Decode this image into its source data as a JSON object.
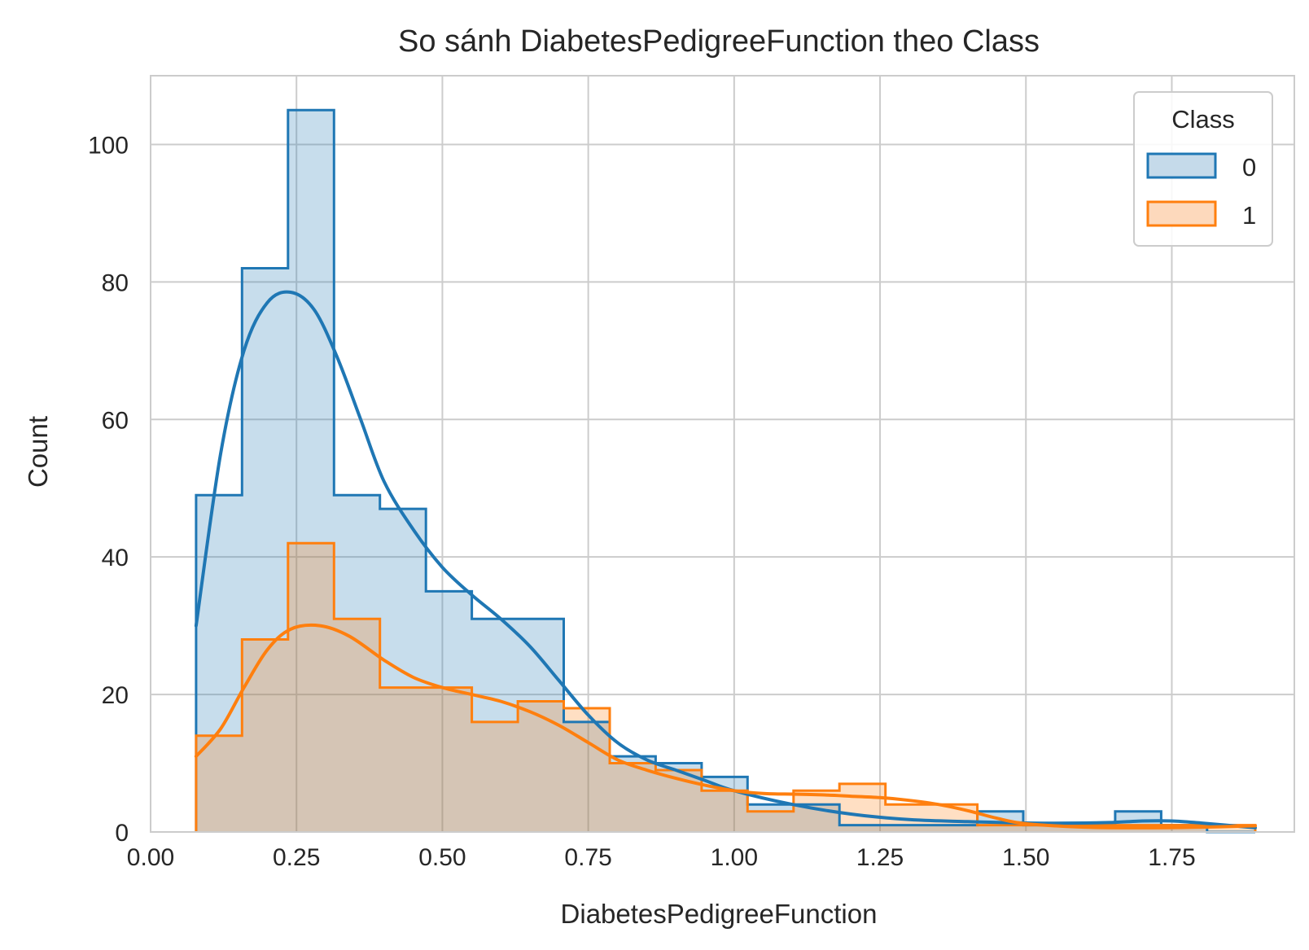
{
  "chart_data": {
    "type": "histogram",
    "title": "So sánh DiabetesPedigreeFunction theo Class",
    "xlabel": "DiabetesPedigreeFunction",
    "ylabel": "Count",
    "xlim": [
      0.0,
      1.96
    ],
    "ylim": [
      0,
      110
    ],
    "xticks": [
      0.0,
      0.25,
      0.5,
      0.75,
      1.0,
      1.25,
      1.5,
      1.75
    ],
    "xtick_labels": [
      "0.00",
      "0.25",
      "0.50",
      "0.75",
      "1.00",
      "1.25",
      "1.50",
      "1.75"
    ],
    "yticks": [
      0,
      20,
      40,
      60,
      80,
      100
    ],
    "ytick_labels": [
      "0",
      "20",
      "40",
      "60",
      "80",
      "100"
    ],
    "grid": true,
    "legend": {
      "title": "Class",
      "position": "top-right"
    },
    "bin_edges": [
      0.078,
      0.1567,
      0.2355,
      0.3143,
      0.393,
      0.4718,
      0.5505,
      0.6293,
      0.708,
      0.7868,
      0.8655,
      0.9443,
      1.023,
      1.1018,
      1.1805,
      1.2593,
      1.338,
      1.4168,
      1.4955,
      1.5743,
      1.653,
      1.7318,
      1.8105,
      1.893
    ],
    "series": [
      {
        "name": "0",
        "color": "#1f77b4",
        "fill_color": "#c5daea",
        "counts": [
          49,
          82,
          105,
          49,
          47,
          35,
          31,
          31,
          16,
          11,
          10,
          8,
          4,
          4,
          1,
          1,
          1,
          3,
          1,
          1,
          3,
          1,
          0
        ],
        "kde": {
          "x": [
            0.078,
            0.12,
            0.16,
            0.2,
            0.24,
            0.28,
            0.32,
            0.36,
            0.4,
            0.45,
            0.5,
            0.55,
            0.6,
            0.65,
            0.7,
            0.75,
            0.8,
            0.85,
            0.9,
            0.95,
            1.0,
            1.1,
            1.2,
            1.3,
            1.4,
            1.5,
            1.6,
            1.65,
            1.7,
            1.75,
            1.8,
            1.893
          ],
          "y": [
            30,
            55,
            70,
            77,
            78.5,
            76,
            69,
            60,
            51,
            44,
            38.5,
            34.5,
            31,
            27,
            22,
            17,
            13,
            10.5,
            9,
            7.5,
            6,
            4,
            2.6,
            1.8,
            1.5,
            1.3,
            1.3,
            1.4,
            1.6,
            1.6,
            1.3,
            0.6
          ]
        }
      },
      {
        "name": "1",
        "color": "#ff7f0e",
        "fill_color": "#fdd9bc",
        "counts": [
          14,
          28,
          42,
          31,
          21,
          21,
          16,
          19,
          18,
          10,
          9,
          6,
          3,
          6,
          7,
          4,
          4,
          1,
          1,
          1,
          1,
          1,
          1
        ],
        "kde": {
          "x": [
            0.078,
            0.12,
            0.16,
            0.2,
            0.24,
            0.29,
            0.34,
            0.4,
            0.45,
            0.5,
            0.55,
            0.6,
            0.65,
            0.7,
            0.75,
            0.8,
            0.85,
            0.9,
            0.95,
            1.0,
            1.05,
            1.1,
            1.15,
            1.2,
            1.25,
            1.3,
            1.35,
            1.4,
            1.45,
            1.5,
            1.6,
            1.7,
            1.8,
            1.893
          ],
          "y": [
            11,
            15,
            21,
            26.5,
            29.5,
            30,
            28.5,
            25,
            22.5,
            21,
            20,
            19,
            17.5,
            15.5,
            13,
            10.5,
            9,
            7.8,
            6.8,
            6,
            5.6,
            5.5,
            5.4,
            5.2,
            5,
            4.6,
            4,
            3.1,
            2,
            1.2,
            0.7,
            0.6,
            0.7,
            0.9
          ]
        }
      }
    ]
  }
}
